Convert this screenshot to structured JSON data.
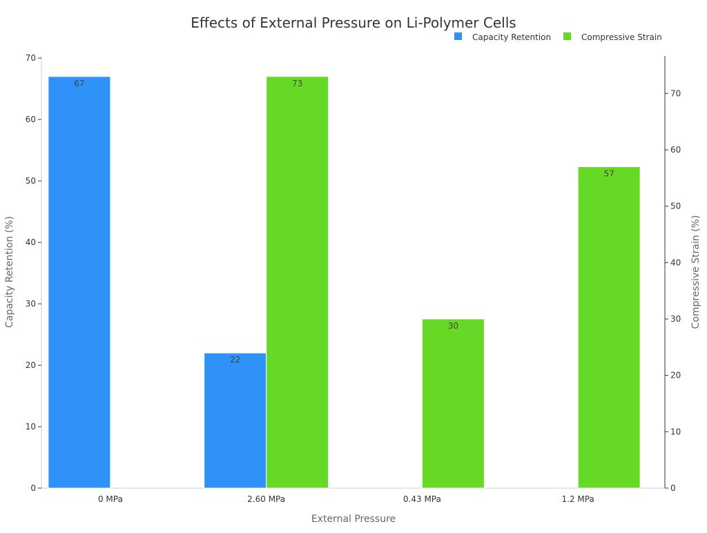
{
  "chart_data": {
    "type": "bar",
    "title": "Effects of External Pressure on Li-Polymer Cells",
    "xlabel": "External Pressure",
    "ylabel": "Capacity Retention (%)",
    "y2label": "Compressive Strain (%)",
    "categories": [
      "0 MPa",
      "2.60 MPa",
      "0.43 MPa",
      "1.2 MPa"
    ],
    "series": [
      {
        "name": "Capacity Retention",
        "axis": "left",
        "color": "#2f92f8",
        "values": [
          67,
          22,
          null,
          null
        ]
      },
      {
        "name": "Compressive Strain",
        "axis": "right",
        "color": "#66d926",
        "values": [
          null,
          73,
          30,
          57
        ]
      }
    ],
    "ylim": [
      0,
      70.35
    ],
    "y2lim": [
      0,
      76.65
    ],
    "yticks": [
      0,
      10,
      20,
      30,
      40,
      50,
      60,
      70
    ],
    "y2ticks": [
      0,
      10,
      20,
      30,
      40,
      50,
      60,
      70
    ],
    "grid": false,
    "legend_position": "top-right",
    "data_labels": true
  }
}
